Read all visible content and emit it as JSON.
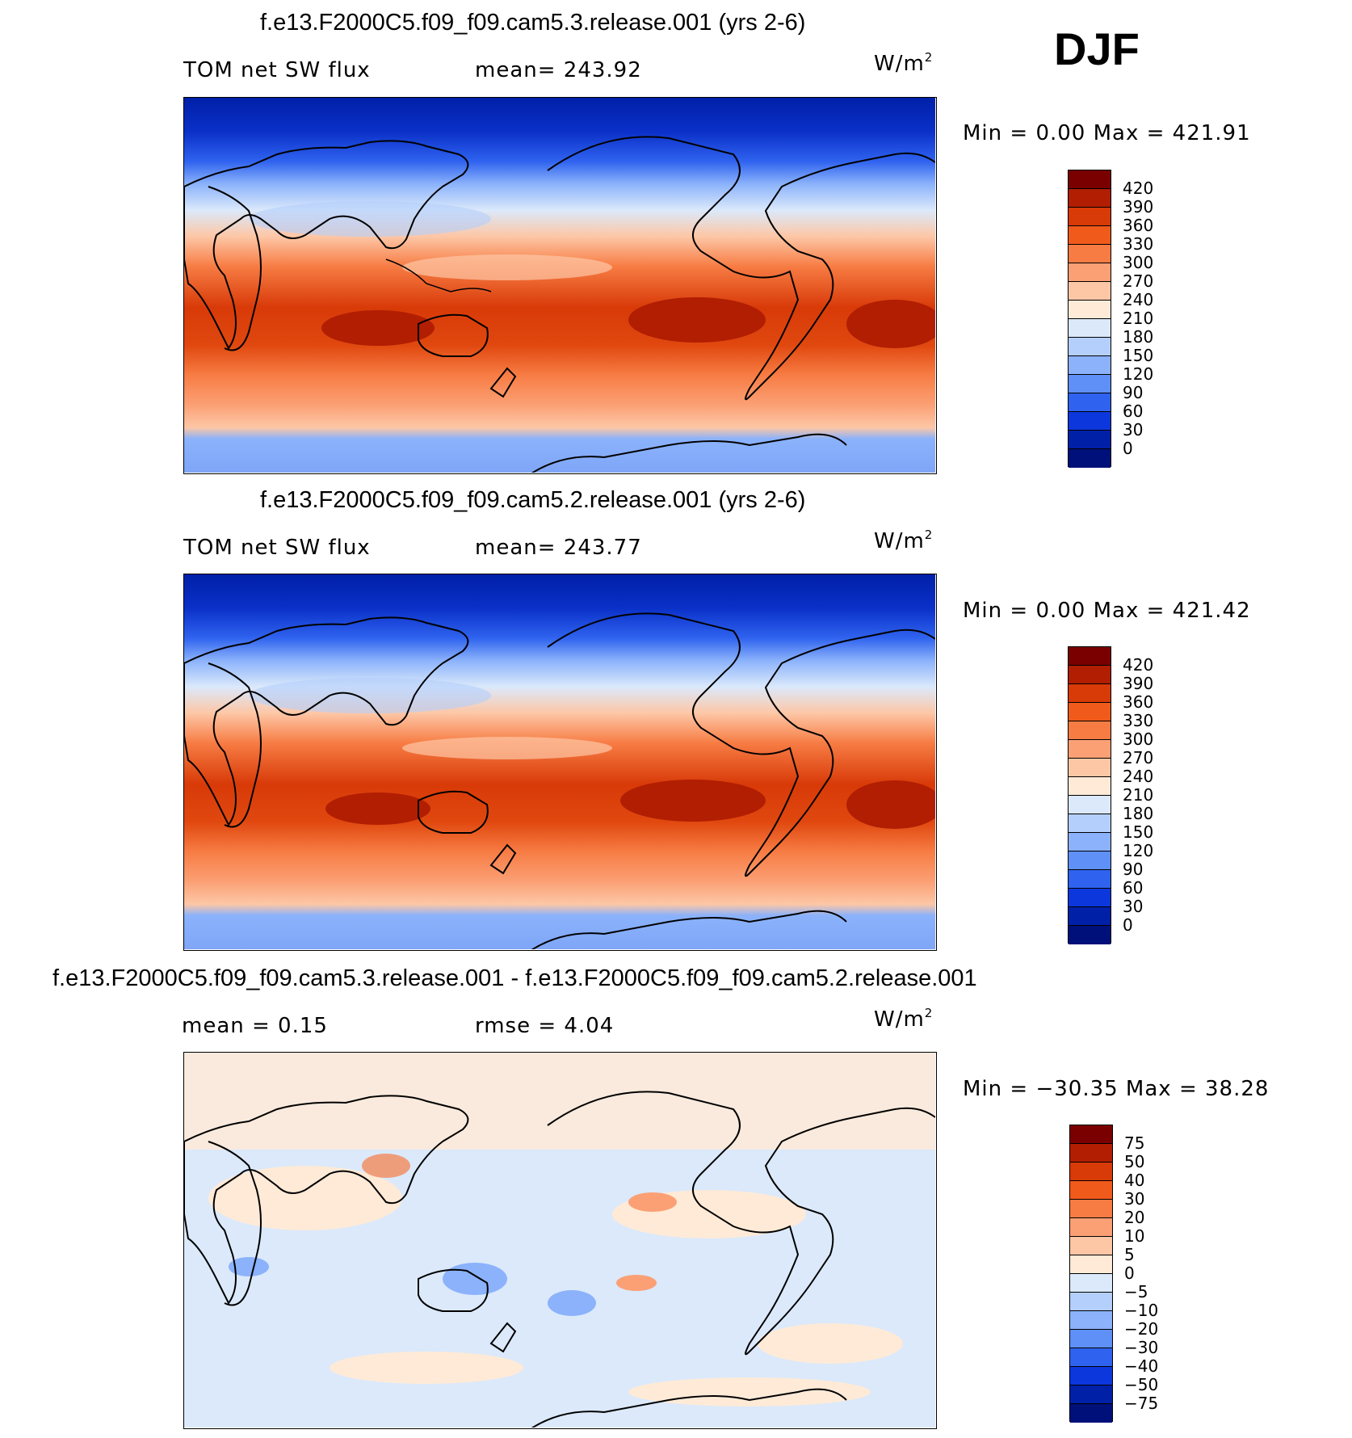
{
  "season": "DJF",
  "panels": [
    {
      "id": "top",
      "title": "f.e13.F2000C5.f09_f09.cam5.3.release.001 (yrs 2-6)",
      "left_text": "TOM net SW flux",
      "stat_text": "mean= 243.92",
      "units": "W/m",
      "units_sup": "2",
      "minmax": "Min =    0.00 Max = 421.91",
      "colorbar": {
        "labels": [
          "420",
          "390",
          "360",
          "330",
          "300",
          "270",
          "240",
          "210",
          "180",
          "150",
          "120",
          "90",
          "60",
          "30",
          "0"
        ],
        "colors": [
          "#7a0000",
          "#b11e02",
          "#d83a08",
          "#f05a1a",
          "#f77c44",
          "#fba075",
          "#fdc7a6",
          "#feead7",
          "#dbe9fb",
          "#b4cffb",
          "#8bb2fb",
          "#5e90f8",
          "#2f63ef",
          "#0c37dd",
          "#0020a8",
          "#00107a"
        ]
      }
    },
    {
      "id": "middle",
      "title": "f.e13.F2000C5.f09_f09.cam5.2.release.001 (yrs 2-6)",
      "left_text": "TOM net SW flux",
      "stat_text": "mean= 243.77",
      "units": "W/m",
      "units_sup": "2",
      "minmax": "Min =    0.00 Max = 421.42",
      "colorbar": {
        "labels": [
          "420",
          "390",
          "360",
          "330",
          "300",
          "270",
          "240",
          "210",
          "180",
          "150",
          "120",
          "90",
          "60",
          "30",
          "0"
        ],
        "colors": [
          "#7a0000",
          "#b11e02",
          "#d83a08",
          "#f05a1a",
          "#f77c44",
          "#fba075",
          "#fdc7a6",
          "#feead7",
          "#dbe9fb",
          "#b4cffb",
          "#8bb2fb",
          "#5e90f8",
          "#2f63ef",
          "#0c37dd",
          "#0020a8",
          "#00107a"
        ]
      }
    },
    {
      "id": "difference",
      "title": "f.e13.F2000C5.f09_f09.cam5.3.release.001 - f.e13.F2000C5.f09_f09.cam5.2.release.001",
      "left_text": "mean =    0.15",
      "stat_text": "rmse =    4.04",
      "units": "W/m",
      "units_sup": "2",
      "minmax": "Min = −30.35 Max =   38.28",
      "colorbar": {
        "labels": [
          "75",
          "50",
          "40",
          "30",
          "20",
          "10",
          "5",
          "0",
          "−5",
          "−10",
          "−20",
          "−30",
          "−40",
          "−50",
          "−75"
        ],
        "colors": [
          "#7a0000",
          "#b11e02",
          "#d83a08",
          "#f05a1a",
          "#f77c44",
          "#fba075",
          "#fdc7a6",
          "#feead7",
          "#dbe9fb",
          "#b4cffb",
          "#8bb2fb",
          "#5e90f8",
          "#2f63ef",
          "#0c37dd",
          "#0020a8",
          "#00107a"
        ]
      }
    }
  ]
}
